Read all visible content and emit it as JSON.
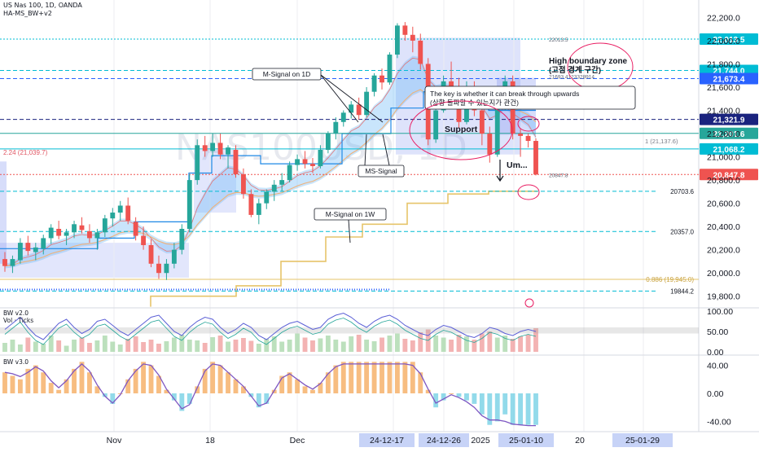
{
  "header": {
    "symbol": "US Nas 100, 1D, OANDA",
    "indicator": "HA-MS_BW+v2",
    "watermark": "NAS100USD, 1D"
  },
  "panes": {
    "bw2_label": "BW v2.0",
    "vol_label": "Vol · Ticks",
    "bw3_label": "BW v3.0"
  },
  "colors": {
    "up": "#26a69a",
    "down": "#ef5350",
    "signal_1w": "#e6c46a",
    "band_fill": "#7b8ef0",
    "accent_blue": "#2962ff",
    "bw2_line": "#5b5fd6"
  },
  "chart_data": {
    "type": "candlestick",
    "title": "US Nas 100, 1D, OANDA",
    "ylim": [
      19700,
      22350
    ],
    "y_ticks": [
      19800,
      20000,
      20200,
      20400,
      20600,
      20800,
      21000,
      21200,
      21400,
      21600,
      21800,
      22000,
      22200
    ],
    "y_tick_labels": [
      "19,800.0",
      "20,000.0",
      "20,200.0",
      "20,400.0",
      "20,600.0",
      "20,800.0",
      "21,000.0",
      "21,200.0",
      "21,400.0",
      "21,600.0",
      "21,800.0",
      "22,000.0",
      "22,200.0"
    ],
    "x_labels": [
      "Nov",
      "18",
      "Dec",
      "2025",
      "20"
    ],
    "x_highlight_labels": [
      "24-12-17",
      "24-12-26",
      "25-01-10",
      "25-01-29"
    ],
    "candles": [
      [
        20120,
        20180,
        20010,
        20060
      ],
      [
        20060,
        20150,
        20000,
        20120
      ],
      [
        20110,
        20300,
        20080,
        20260
      ],
      [
        20260,
        20320,
        20150,
        20190
      ],
      [
        20180,
        20260,
        20110,
        20220
      ],
      [
        20210,
        20330,
        20160,
        20300
      ],
      [
        20300,
        20420,
        20250,
        20390
      ],
      [
        20380,
        20450,
        20290,
        20320
      ],
      [
        20320,
        20380,
        20240,
        20350
      ],
      [
        20350,
        20450,
        20300,
        20420
      ],
      [
        20410,
        20480,
        20340,
        20370
      ],
      [
        20360,
        20420,
        20260,
        20300
      ],
      [
        20300,
        20380,
        20200,
        20350
      ],
      [
        20350,
        20500,
        20310,
        20470
      ],
      [
        20470,
        20560,
        20400,
        20520
      ],
      [
        20520,
        20620,
        20450,
        20580
      ],
      [
        20580,
        20650,
        20420,
        20450
      ],
      [
        20440,
        20480,
        20280,
        20320
      ],
      [
        20320,
        20400,
        20200,
        20240
      ],
      [
        20240,
        20290,
        20050,
        20080
      ],
      [
        20080,
        20150,
        19950,
        20000
      ],
      [
        20000,
        20120,
        19940,
        20080
      ],
      [
        20080,
        20260,
        20040,
        20200
      ],
      [
        20200,
        20420,
        20160,
        20380
      ],
      [
        20380,
        20850,
        20350,
        20800
      ],
      [
        20800,
        21150,
        20760,
        21100
      ],
      [
        21100,
        21180,
        21000,
        21050
      ],
      [
        21050,
        21200,
        21000,
        21120
      ],
      [
        21120,
        21200,
        20980,
        21020
      ],
      [
        21020,
        21100,
        20900,
        21080
      ],
      [
        21060,
        21100,
        20820,
        20850
      ],
      [
        20850,
        20900,
        20640,
        20680
      ],
      [
        20680,
        20720,
        20480,
        20500
      ],
      [
        20500,
        20640,
        20420,
        20600
      ],
      [
        20600,
        20720,
        20550,
        20700
      ],
      [
        20700,
        20800,
        20620,
        20760
      ],
      [
        20760,
        20860,
        20700,
        20800
      ],
      [
        20800,
        20960,
        20780,
        20930
      ],
      [
        20930,
        21020,
        20880,
        20980
      ],
      [
        20980,
        21050,
        20900,
        20940
      ],
      [
        20940,
        20990,
        20860,
        20920
      ],
      [
        20920,
        21100,
        20900,
        21060
      ],
      [
        21060,
        21220,
        21030,
        21200
      ],
      [
        21200,
        21340,
        21150,
        21300
      ],
      [
        21300,
        21400,
        21260,
        21380
      ],
      [
        21380,
        21480,
        21330,
        21450
      ],
      [
        21450,
        21510,
        21320,
        21360
      ],
      [
        21360,
        21600,
        21340,
        21560
      ],
      [
        21560,
        21720,
        21520,
        21700
      ],
      [
        21700,
        21760,
        21580,
        21640
      ],
      [
        21640,
        21900,
        21620,
        21880
      ],
      [
        21880,
        22150,
        21850,
        22130
      ],
      [
        22130,
        22160,
        22000,
        22050
      ],
      [
        22050,
        22120,
        21900,
        22000
      ],
      [
        22000,
        22060,
        21750,
        21800
      ],
      [
        21800,
        21850,
        21100,
        21150
      ],
      [
        21150,
        21450,
        21120,
        21400
      ],
      [
        21400,
        21700,
        21380,
        21650
      ],
      [
        21650,
        21820,
        21560,
        21600
      ],
      [
        21600,
        21680,
        21250,
        21300
      ],
      [
        21300,
        21650,
        21280,
        21600
      ],
      [
        21600,
        21650,
        21350,
        21400
      ],
      [
        21400,
        21500,
        21100,
        21200
      ],
      [
        21200,
        21260,
        20950,
        21020
      ],
      [
        21020,
        21500,
        21000,
        21450
      ],
      [
        21450,
        21700,
        21400,
        21650
      ],
      [
        21650,
        21700,
        21150,
        21200
      ],
      [
        21200,
        21240,
        21000,
        21180
      ],
      [
        21180,
        21200,
        21080,
        21137
      ],
      [
        21137,
        21160,
        20840,
        20848
      ]
    ],
    "levels": [
      {
        "value": 22013.5,
        "label": "22,013.5",
        "style": "dotted",
        "color": "#00bcd4"
      },
      {
        "value": 21744.0,
        "label": "21,744.0",
        "style": "dashed",
        "color": "#00bcd4"
      },
      {
        "value": 21673.4,
        "label": "21,673.4",
        "style": "dashed",
        "color": "#2962ff"
      },
      {
        "value": 21321.9,
        "label": "21,321.9",
        "style": "dashed",
        "color": "#1a237e"
      },
      {
        "value": 21201.6,
        "label": "21,201.6",
        "style": "solid",
        "color": "#26a69a"
      },
      {
        "value": 21068.2,
        "label": "21,068.2",
        "style": "solid",
        "color": "#00bcd4"
      },
      {
        "value": 20847.8,
        "label": "20,847.8",
        "style": "dotted",
        "color": "#ef5350"
      }
    ],
    "plain_levels": [
      {
        "value": 20703.6,
        "label": "20703.6"
      },
      {
        "value": 20357.0,
        "label": "20357.0"
      },
      {
        "value": 19844.2,
        "label": "19844.2"
      }
    ],
    "fib_level": {
      "value": 19945.0,
      "label": "0.886 (19,945.0)"
    },
    "left_fib_label": "2.24 (21,039.7)",
    "mid_fib_label": "1 (21,137.6)",
    "small_labels": [
      "22013.5",
      "21693.4123328914",
      "20847.8"
    ],
    "annotations": [
      "M-Signal on 1D",
      "MS-Signal",
      "M-Signal on 1W",
      "High boundary zone",
      "(고점 경계 구간)",
      "The key is whether it can break through upwards",
      "(상향 돌파할 수 있는지가 관건)",
      "Support",
      "Um..."
    ],
    "bw2": {
      "ylim": [
        0,
        100
      ],
      "ticks": [
        0,
        50,
        100
      ],
      "tick_labels": [
        "0.00",
        "50.00",
        "100.00"
      ],
      "line": [
        55,
        70,
        85,
        60,
        40,
        30,
        50,
        70,
        80,
        60,
        45,
        55,
        75,
        80,
        65,
        50,
        40,
        55,
        70,
        85,
        90,
        70,
        50,
        40,
        60,
        75,
        85,
        80,
        60,
        45,
        55,
        70,
        60,
        40,
        30,
        45,
        60,
        70,
        75,
        65,
        55,
        60,
        80,
        90,
        95,
        85,
        70,
        60,
        75,
        85,
        90,
        80,
        65,
        55,
        45,
        40,
        55,
        65,
        60,
        50,
        40,
        35,
        45,
        60,
        55,
        45,
        40,
        50,
        55,
        50
      ],
      "volume": [
        22,
        30,
        18,
        35,
        25,
        20,
        40,
        28,
        15,
        30,
        35,
        22,
        28,
        40,
        25,
        18,
        32,
        38,
        24,
        30,
        20,
        26,
        35,
        42,
        30,
        28,
        22,
        36,
        40,
        25,
        30,
        34,
        27,
        20,
        32,
        38,
        25,
        30,
        45,
        35,
        28,
        33,
        40,
        30,
        25,
        38,
        42,
        30,
        26,
        35,
        40,
        45,
        32,
        28,
        48,
        55,
        40,
        35,
        30,
        42,
        38,
        30,
        45,
        50,
        35,
        40,
        32,
        38,
        42,
        58
      ]
    },
    "bw3": {
      "ylim": [
        -50,
        50
      ],
      "ticks": [
        -40,
        0,
        40
      ],
      "tick_labels": [
        "-40.00",
        "0.00",
        "40.00"
      ],
      "hist": [
        30,
        25,
        20,
        35,
        40,
        30,
        15,
        5,
        20,
        35,
        45,
        30,
        10,
        -5,
        -15,
        0,
        20,
        35,
        45,
        40,
        25,
        5,
        -10,
        -25,
        -15,
        10,
        35,
        45,
        40,
        30,
        20,
        10,
        -5,
        -20,
        -15,
        5,
        25,
        30,
        20,
        10,
        5,
        15,
        30,
        40,
        45,
        45,
        45,
        45,
        45,
        45,
        45,
        45,
        45,
        45,
        30,
        5,
        -20,
        -10,
        0,
        -5,
        -10,
        -15,
        -30,
        -45,
        -40,
        -30,
        -45,
        -45,
        -45,
        -45
      ],
      "line": [
        30,
        28,
        24,
        30,
        38,
        32,
        18,
        8,
        18,
        32,
        42,
        32,
        12,
        -4,
        -14,
        -2,
        18,
        32,
        42,
        40,
        26,
        6,
        -8,
        -22,
        -16,
        8,
        32,
        42,
        40,
        30,
        20,
        10,
        -4,
        -18,
        -14,
        4,
        22,
        28,
        20,
        12,
        6,
        14,
        28,
        38,
        42,
        42,
        42,
        42,
        42,
        42,
        42,
        42,
        42,
        40,
        28,
        6,
        -14,
        -8,
        -2,
        -6,
        -12,
        -20,
        -32,
        -38,
        -38,
        -40,
        -44,
        -45,
        -46,
        -46
      ]
    }
  }
}
